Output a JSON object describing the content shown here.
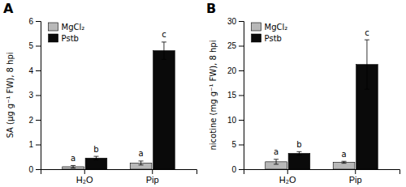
{
  "chart_data": [
    {
      "type": "bar",
      "title": "A",
      "ylabel": "SA (μg g⁻¹ FW), 8 hpi",
      "categories": [
        "H₂O",
        "Pip"
      ],
      "series": [
        {
          "name": "MgCl₂",
          "color": "#b8b8b8",
          "values": [
            0.1,
            0.25
          ],
          "errors": [
            0.05,
            0.08
          ],
          "annotations": [
            "a",
            "a"
          ]
        },
        {
          "name": "Pstb",
          "color": "#0a0a0a",
          "values": [
            0.45,
            4.8
          ],
          "errors": [
            0.07,
            0.35
          ],
          "annotations": [
            "b",
            "c"
          ]
        }
      ],
      "ylim": [
        0,
        6
      ],
      "yticks": [
        0,
        1,
        2,
        3,
        4,
        5,
        6
      ],
      "grid": false,
      "legend": "upper left"
    },
    {
      "type": "bar",
      "title": "B",
      "ylabel": "nicotine (mg g⁻¹ FW), 8 hpi",
      "categories": [
        "H₂O",
        "Pip"
      ],
      "series": [
        {
          "name": "MgCl₂",
          "color": "#b8b8b8",
          "values": [
            1.5,
            1.4
          ],
          "errors": [
            0.5,
            0.2
          ],
          "annotations": [
            "a",
            "a"
          ]
        },
        {
          "name": "Pstb",
          "color": "#0a0a0a",
          "values": [
            3.2,
            21.2
          ],
          "errors": [
            0.35,
            5.0
          ],
          "annotations": [
            "b",
            "c"
          ]
        }
      ],
      "ylim": [
        0,
        30
      ],
      "yticks": [
        0,
        5,
        10,
        15,
        20,
        25,
        30
      ],
      "grid": false,
      "legend": "upper left"
    }
  ]
}
